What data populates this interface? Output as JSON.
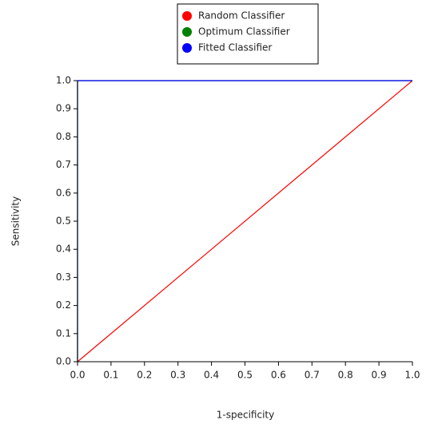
{
  "chart_data": {
    "type": "line",
    "x_label": "1-specificity",
    "y_label": "Sensitivity",
    "xlim": [
      0,
      1
    ],
    "ylim": [
      0,
      1
    ],
    "xticks": [
      {
        "value": 0,
        "label": "0.0"
      },
      0.1,
      0.2,
      0.3,
      0.4,
      0.5,
      0.6,
      0.7,
      0.8,
      0.9,
      {
        "value": 1,
        "label": "1.0"
      }
    ],
    "yticks": [
      {
        "value": 0,
        "label": "0.0"
      },
      0.1,
      0.2,
      0.3,
      0.4,
      0.5,
      0.6,
      0.7,
      0.8,
      0.9,
      {
        "value": 1,
        "label": "1.0"
      }
    ],
    "legend": "top",
    "series": [
      {
        "name": "Random Classifier",
        "color": "#ff0000",
        "x": [
          0,
          1
        ],
        "values": [
          0,
          1
        ]
      },
      {
        "name": "Optimum Classifier",
        "color": "#008000",
        "x": [
          0,
          0,
          1
        ],
        "values": [
          0,
          1,
          1
        ]
      },
      {
        "name": "Fitted Classifier",
        "color": "#0000ff",
        "x": [
          0,
          0,
          1
        ],
        "values": [
          0,
          1,
          1
        ]
      }
    ]
  }
}
